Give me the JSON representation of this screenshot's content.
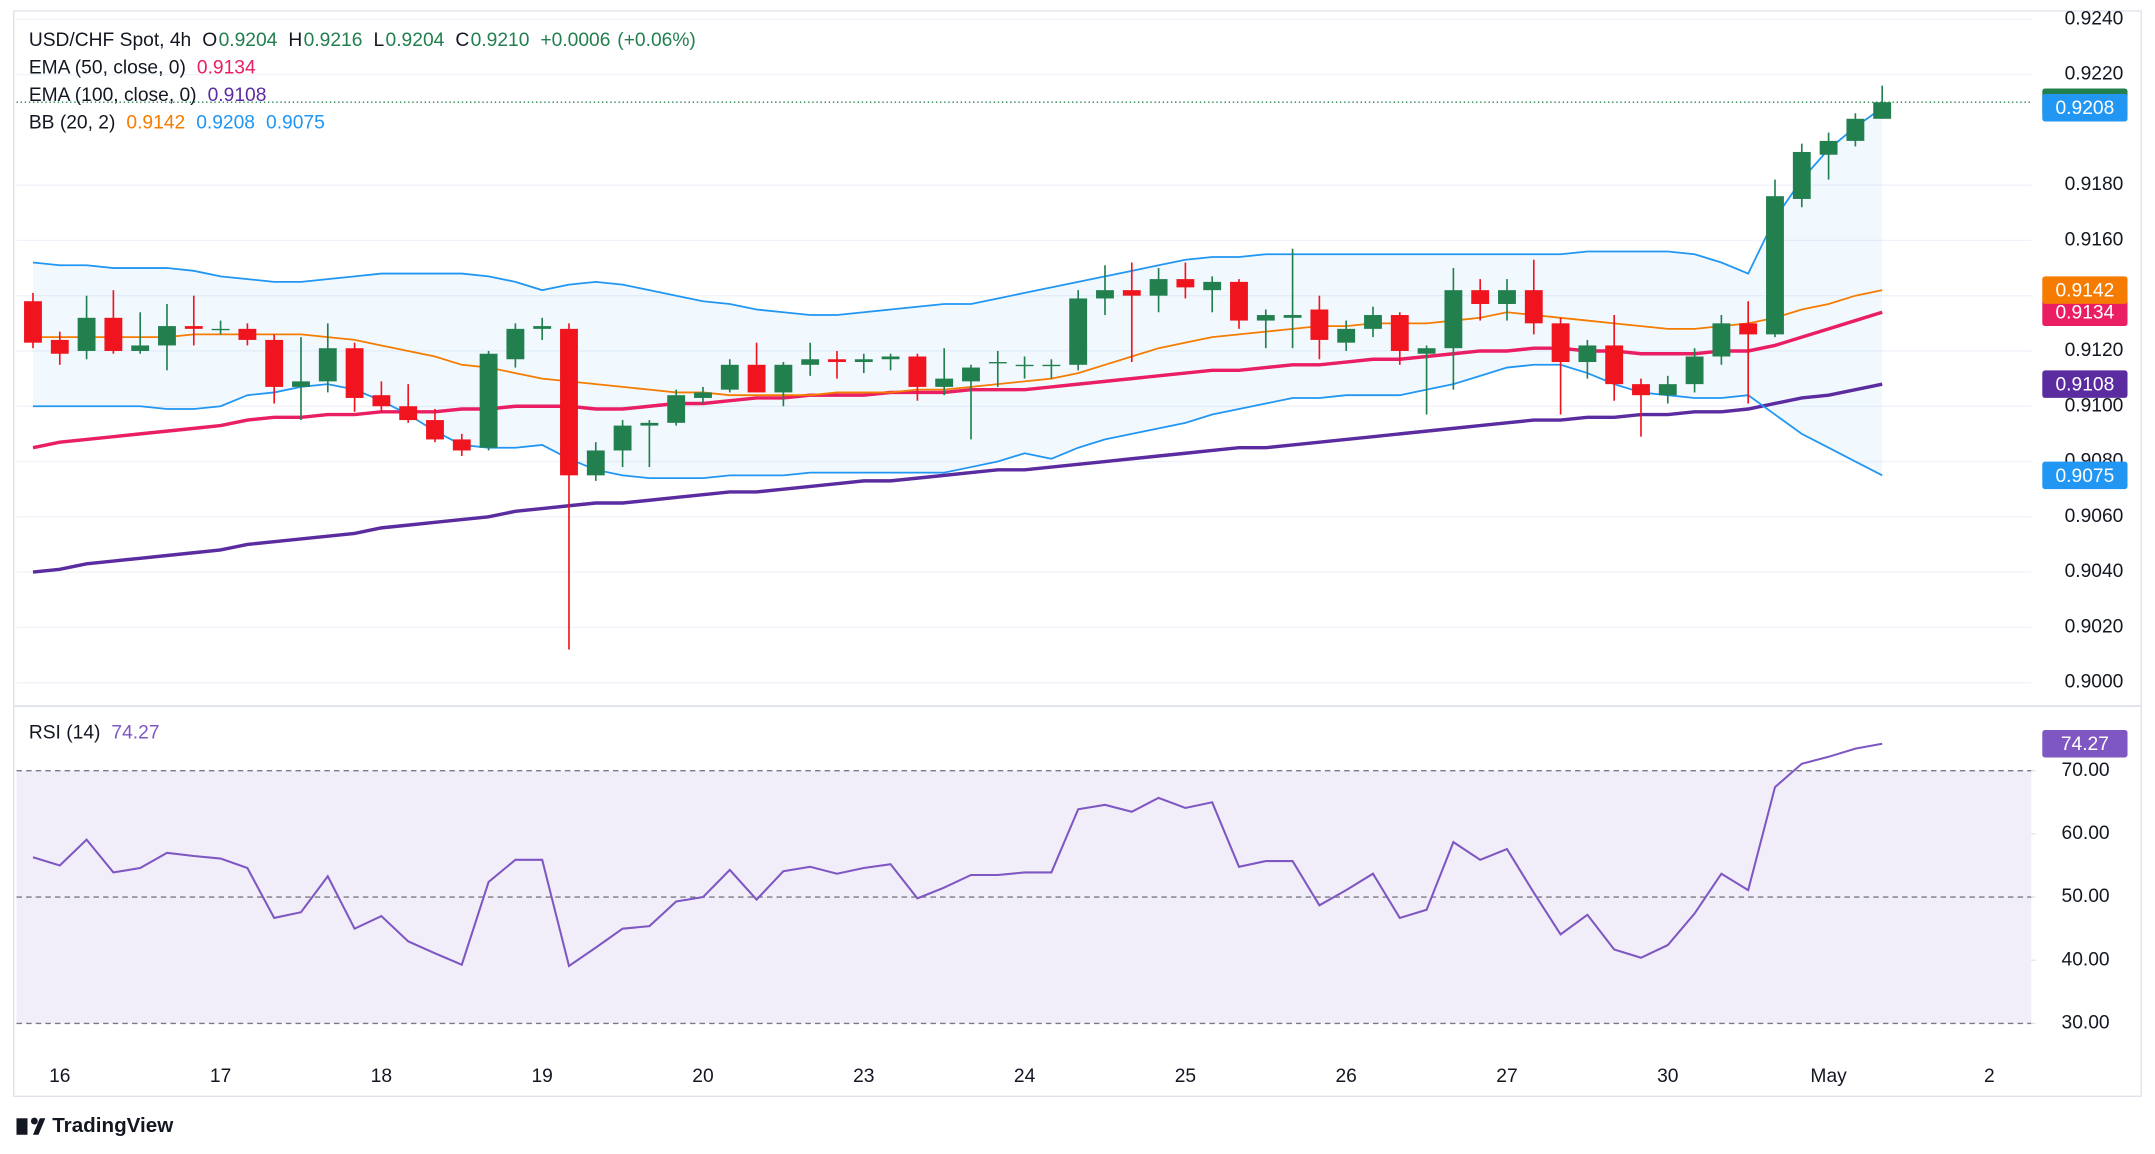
{
  "branding": "TradingView",
  "chart_data": [
    {
      "type": "candlestick",
      "title": "USD/CHF Spot, 4h",
      "quote": [
        {
          "label": "O",
          "value": "0.9204"
        },
        {
          "label": "H",
          "value": "0.9216"
        },
        {
          "label": "L",
          "value": "0.9204"
        },
        {
          "label": "C",
          "value": "0.9210"
        }
      ],
      "change": "+0.0006",
      "change_percent": "(+0.06%)",
      "categories": [
        null,
        "16",
        null,
        null,
        null,
        null,
        null,
        "17",
        null,
        null,
        null,
        null,
        null,
        "18",
        null,
        null,
        null,
        null,
        null,
        "19",
        null,
        null,
        null,
        null,
        null,
        "20",
        null,
        null,
        null,
        null,
        null,
        "23",
        null,
        null,
        null,
        null,
        null,
        "24",
        null,
        null,
        null,
        null,
        null,
        "25",
        null,
        null,
        null,
        null,
        null,
        "26",
        null,
        null,
        null,
        null,
        null,
        "27",
        null,
        null,
        null,
        null,
        null,
        "30",
        null,
        null,
        null,
        null,
        null,
        "May",
        null,
        null,
        null,
        null,
        null,
        "2",
        null
      ],
      "open": [
        0.9138,
        0.9124,
        0.912,
        0.9132,
        0.912,
        0.9122,
        0.9129,
        0.9128,
        0.9128,
        0.9124,
        0.9107,
        0.9109,
        0.9121,
        0.9104,
        0.91,
        0.9095,
        0.9088,
        0.9085,
        0.9117,
        0.9128,
        0.9128,
        0.9075,
        0.9084,
        0.9093,
        0.9094,
        0.9103,
        0.9106,
        0.9115,
        0.9105,
        0.9115,
        0.9117,
        0.9116,
        0.9117,
        0.9118,
        0.9107,
        0.9109,
        0.9116,
        0.9115,
        0.9115,
        0.9115,
        0.9139,
        0.9142,
        0.914,
        0.9146,
        0.9142,
        0.9145,
        0.9131,
        0.9132,
        0.9135,
        0.9123,
        0.9128,
        0.9133,
        0.9119,
        0.9121,
        0.9142,
        0.9137,
        0.9142,
        0.913,
        0.9116,
        0.9122,
        0.9108,
        0.9104,
        0.9108,
        0.9118,
        0.913,
        0.9126,
        0.9175,
        0.9191,
        0.9196,
        0.9204,
        null,
        null,
        null,
        null,
        null
      ],
      "high": [
        0.9141,
        0.9127,
        0.914,
        0.9142,
        0.9134,
        0.9137,
        0.914,
        0.9131,
        0.913,
        0.9126,
        0.9125,
        0.913,
        0.9123,
        0.9109,
        0.9108,
        0.9099,
        0.909,
        0.912,
        0.913,
        0.9132,
        0.913,
        0.9087,
        0.9095,
        0.9095,
        0.9106,
        0.9107,
        0.9117,
        0.9123,
        0.9116,
        0.9123,
        0.912,
        0.9119,
        0.9119,
        0.9119,
        0.9121,
        0.9115,
        0.912,
        0.9118,
        0.9117,
        0.9142,
        0.9151,
        0.9152,
        0.915,
        0.9152,
        0.9147,
        0.9146,
        0.9135,
        0.9157,
        0.914,
        0.9131,
        0.9136,
        0.9134,
        0.9122,
        0.915,
        0.9146,
        0.9146,
        0.9153,
        0.9132,
        0.9124,
        0.9133,
        0.911,
        0.9111,
        0.9121,
        0.9133,
        0.9138,
        0.9182,
        0.9195,
        0.9199,
        0.9206,
        0.9216,
        null,
        null,
        null,
        null,
        null
      ],
      "low": [
        0.9121,
        0.9115,
        0.9117,
        0.9119,
        0.9119,
        0.9113,
        0.9122,
        0.9126,
        0.9122,
        0.9101,
        0.9095,
        0.9105,
        0.9098,
        0.9098,
        0.9094,
        0.9087,
        0.9082,
        0.9084,
        0.9114,
        0.9124,
        0.9012,
        0.9073,
        0.9078,
        0.9078,
        0.9093,
        0.9101,
        0.9105,
        0.9105,
        0.91,
        0.9111,
        0.911,
        0.9112,
        0.9113,
        0.9102,
        0.9104,
        0.9088,
        0.9107,
        0.911,
        0.911,
        0.9113,
        0.9133,
        0.9116,
        0.9134,
        0.9139,
        0.9134,
        0.9128,
        0.9121,
        0.9121,
        0.9117,
        0.912,
        0.9125,
        0.9115,
        0.9097,
        0.9106,
        0.9131,
        0.9131,
        0.9126,
        0.9097,
        0.911,
        0.9102,
        0.9089,
        0.9101,
        0.9105,
        0.9115,
        0.9101,
        0.9125,
        0.9172,
        0.9182,
        0.9194,
        0.9204,
        null,
        null,
        null,
        null,
        null
      ],
      "close": [
        0.9123,
        0.9119,
        0.9132,
        0.912,
        0.9122,
        0.9129,
        0.9128,
        0.9128,
        0.9124,
        0.9107,
        0.9109,
        0.9121,
        0.9103,
        0.91,
        0.9095,
        0.9088,
        0.9084,
        0.9119,
        0.9128,
        0.9129,
        0.9075,
        0.9084,
        0.9093,
        0.9094,
        0.9104,
        0.9105,
        0.9115,
        0.9105,
        0.9115,
        0.9117,
        0.9116,
        0.9117,
        0.9118,
        0.9107,
        0.911,
        0.9114,
        0.9116,
        0.9115,
        0.9115,
        0.9139,
        0.9142,
        0.914,
        0.9146,
        0.9143,
        0.9145,
        0.9131,
        0.9133,
        0.9133,
        0.9124,
        0.9128,
        0.9133,
        0.912,
        0.9121,
        0.9142,
        0.9137,
        0.9142,
        0.913,
        0.9116,
        0.9122,
        0.9108,
        0.9104,
        0.9108,
        0.9118,
        0.913,
        0.9126,
        0.9176,
        0.9192,
        0.9196,
        0.9204,
        0.921,
        null,
        null,
        null,
        null,
        null
      ],
      "up_color": "#22804f",
      "down_color": "#f0141e",
      "indicators": [
        {
          "name": "EMA (50, close, 0)",
          "lines": [
            {
              "color": "#e91e63",
              "width": 2.5,
              "last_label": "0.9134",
              "values": [
                0.9085,
                0.9087,
                0.9088,
                0.9089,
                0.909,
                0.9091,
                0.9092,
                0.9093,
                0.9095,
                0.9096,
                0.9096,
                0.9097,
                0.9097,
                0.9098,
                0.9098,
                0.9098,
                0.9099,
                0.9099,
                0.91,
                0.91,
                0.91,
                0.9099,
                0.9099,
                0.91,
                0.9101,
                0.9101,
                0.9102,
                0.9103,
                0.9103,
                0.9104,
                0.9104,
                0.9104,
                0.9105,
                0.9105,
                0.9105,
                0.9106,
                0.9106,
                0.9106,
                0.9107,
                0.9108,
                0.9109,
                0.911,
                0.9111,
                0.9112,
                0.9113,
                0.9113,
                0.9114,
                0.9115,
                0.9115,
                0.9116,
                0.9117,
                0.9117,
                0.9118,
                0.9119,
                0.912,
                0.912,
                0.9121,
                0.9121,
                0.912,
                0.912,
                0.9119,
                0.9119,
                0.9119,
                0.912,
                0.912,
                0.9122,
                0.9125,
                0.9128,
                0.9131,
                0.9134,
                null,
                null,
                null,
                null,
                null
              ]
            }
          ]
        },
        {
          "name": "EMA (100, close, 0)",
          "lines": [
            {
              "color": "#5b2ca0",
              "width": 2.5,
              "last_label": "0.9108",
              "values": [
                0.904,
                0.9041,
                0.9043,
                0.9044,
                0.9045,
                0.9046,
                0.9047,
                0.9048,
                0.905,
                0.9051,
                0.9052,
                0.9053,
                0.9054,
                0.9056,
                0.9057,
                0.9058,
                0.9059,
                0.906,
                0.9062,
                0.9063,
                0.9064,
                0.9065,
                0.9065,
                0.9066,
                0.9067,
                0.9068,
                0.9069,
                0.9069,
                0.907,
                0.9071,
                0.9072,
                0.9073,
                0.9073,
                0.9074,
                0.9075,
                0.9076,
                0.9077,
                0.9077,
                0.9078,
                0.9079,
                0.908,
                0.9081,
                0.9082,
                0.9083,
                0.9084,
                0.9085,
                0.9085,
                0.9086,
                0.9087,
                0.9088,
                0.9089,
                0.909,
                0.9091,
                0.9092,
                0.9093,
                0.9094,
                0.9095,
                0.9095,
                0.9096,
                0.9096,
                0.9097,
                0.9097,
                0.9098,
                0.9098,
                0.9099,
                0.9101,
                0.9103,
                0.9104,
                0.9106,
                0.9108,
                null,
                null,
                null,
                null,
                null
              ]
            }
          ]
        },
        {
          "name": "BB (20, 2)",
          "fill": "#2196f3",
          "lines": [
            {
              "color": "#f57c00",
              "width": 1.3,
              "last_label": "0.9142",
              "values": [
                0.9125,
                0.9125,
                0.9125,
                0.9125,
                0.9125,
                0.9125,
                0.9126,
                0.9126,
                0.9126,
                0.9126,
                0.9126,
                0.9125,
                0.9124,
                0.9122,
                0.912,
                0.9118,
                0.9115,
                0.9114,
                0.9112,
                0.911,
                0.9109,
                0.9108,
                0.9107,
                0.9106,
                0.9105,
                0.9105,
                0.9104,
                0.9104,
                0.9104,
                0.9104,
                0.9105,
                0.9105,
                0.9105,
                0.9106,
                0.9106,
                0.9107,
                0.9108,
                0.9109,
                0.911,
                0.9112,
                0.9115,
                0.9118,
                0.9121,
                0.9123,
                0.9125,
                0.9126,
                0.9127,
                0.9128,
                0.9129,
                0.9129,
                0.913,
                0.913,
                0.913,
                0.9131,
                0.9132,
                0.9134,
                0.9133,
                0.9132,
                0.9131,
                0.913,
                0.9129,
                0.9128,
                0.9128,
                0.9129,
                0.913,
                0.9132,
                0.9135,
                0.9137,
                0.914,
                0.9142,
                null,
                null,
                null,
                null,
                null
              ]
            },
            {
              "color": "#2196f3",
              "width": 1.3,
              "last_label": "0.9208",
              "values": [
                0.9152,
                0.9151,
                0.9151,
                0.915,
                0.915,
                0.915,
                0.9149,
                0.9147,
                0.9146,
                0.9145,
                0.9145,
                0.9146,
                0.9147,
                0.9148,
                0.9148,
                0.9148,
                0.9148,
                0.9147,
                0.9145,
                0.9142,
                0.9144,
                0.9145,
                0.9144,
                0.9142,
                0.914,
                0.9138,
                0.9137,
                0.9135,
                0.9134,
                0.9133,
                0.9133,
                0.9134,
                0.9135,
                0.9136,
                0.9137,
                0.9137,
                0.9139,
                0.9141,
                0.9143,
                0.9145,
                0.9147,
                0.9149,
                0.9151,
                0.9153,
                0.9154,
                0.9154,
                0.9155,
                0.9155,
                0.9155,
                0.9155,
                0.9155,
                0.9155,
                0.9155,
                0.9155,
                0.9155,
                0.9155,
                0.9155,
                0.9155,
                0.9156,
                0.9156,
                0.9156,
                0.9156,
                0.9155,
                0.9152,
                0.9148,
                0.9168,
                0.9182,
                0.9193,
                0.9201,
                0.9208,
                null,
                null,
                null,
                null,
                null
              ]
            },
            {
              "color": "#2196f3",
              "width": 1.3,
              "last_label": "0.9075",
              "values": [
                0.91,
                0.91,
                0.91,
                0.91,
                0.91,
                0.9099,
                0.9099,
                0.91,
                0.9104,
                0.9105,
                0.9107,
                0.9108,
                0.9106,
                0.9102,
                0.9097,
                0.9091,
                0.9086,
                0.9085,
                0.9085,
                0.9086,
                0.9081,
                0.9077,
                0.9075,
                0.9074,
                0.9074,
                0.9074,
                0.9075,
                0.9075,
                0.9075,
                0.9076,
                0.9076,
                0.9076,
                0.9076,
                0.9076,
                0.9076,
                0.9078,
                0.908,
                0.9083,
                0.9081,
                0.9085,
                0.9088,
                0.909,
                0.9092,
                0.9094,
                0.9097,
                0.9099,
                0.9101,
                0.9103,
                0.9103,
                0.9104,
                0.9104,
                0.9104,
                0.9106,
                0.9108,
                0.9111,
                0.9114,
                0.9115,
                0.9115,
                0.9112,
                0.9108,
                0.9105,
                0.9104,
                0.9103,
                0.9103,
                0.9104,
                0.9097,
                0.909,
                0.9085,
                0.908,
                0.9075,
                null,
                null,
                null,
                null,
                null
              ]
            }
          ]
        }
      ],
      "ylim": [
        0.89925,
        0.9243
      ],
      "yticks": [
        {
          "value": 0.9,
          "label": "0.9000"
        },
        {
          "value": 0.902,
          "label": "0.9020"
        },
        {
          "value": 0.904,
          "label": "0.9040"
        },
        {
          "value": 0.906,
          "label": "0.9060"
        },
        {
          "value": 0.908,
          "label": "0.9080"
        },
        {
          "value": 0.91,
          "label": "0.9100"
        },
        {
          "value": 0.912,
          "label": "0.9120"
        },
        {
          "value": 0.914,
          "label": "0.9140"
        },
        {
          "value": 0.916,
          "label": "0.9160"
        },
        {
          "value": 0.918,
          "label": "0.9180"
        },
        {
          "value": 0.922,
          "label": "0.9220"
        },
        {
          "value": 0.924,
          "label": "0.9240"
        }
      ],
      "grid": true
    },
    {
      "type": "line",
      "title": "RSI (14)",
      "series": [
        {
          "color": "#7e57c2",
          "values": [
            56.3,
            55.0,
            59.1,
            53.9,
            54.6,
            57.0,
            56.5,
            56.1,
            54.6,
            46.7,
            47.6,
            53.3,
            45.0,
            47.0,
            43.0,
            41.1,
            39.3,
            52.4,
            55.9,
            55.9,
            39.1,
            42.0,
            45.0,
            45.4,
            49.3,
            50.0,
            54.3,
            49.6,
            54.1,
            54.8,
            53.7,
            54.6,
            55.2,
            49.8,
            51.5,
            53.5,
            53.5,
            53.9,
            53.9,
            63.9,
            64.6,
            63.5,
            65.7,
            64.1,
            65.0,
            54.8,
            55.7,
            55.7,
            48.7,
            51.1,
            53.7,
            46.7,
            48.0,
            58.7,
            55.9,
            57.6,
            50.7,
            44.1,
            47.2,
            41.7,
            40.4,
            42.4,
            47.4,
            53.7,
            51.1,
            67.4,
            71.1,
            72.2,
            73.5,
            74.27,
            null,
            null,
            null,
            null,
            null
          ]
        }
      ],
      "ylim": [
        25.65,
        80
      ],
      "yticks": [
        {
          "value": 30,
          "label": "30.00"
        },
        {
          "value": 40,
          "label": "40.00"
        },
        {
          "value": 50,
          "label": "50.00"
        },
        {
          "value": 60,
          "label": "60.00"
        },
        {
          "value": 70,
          "label": "70.00"
        }
      ],
      "band": [
        30,
        70
      ],
      "band_color": "#7e57c2",
      "dashed_levels": [
        30,
        50,
        70
      ]
    }
  ]
}
